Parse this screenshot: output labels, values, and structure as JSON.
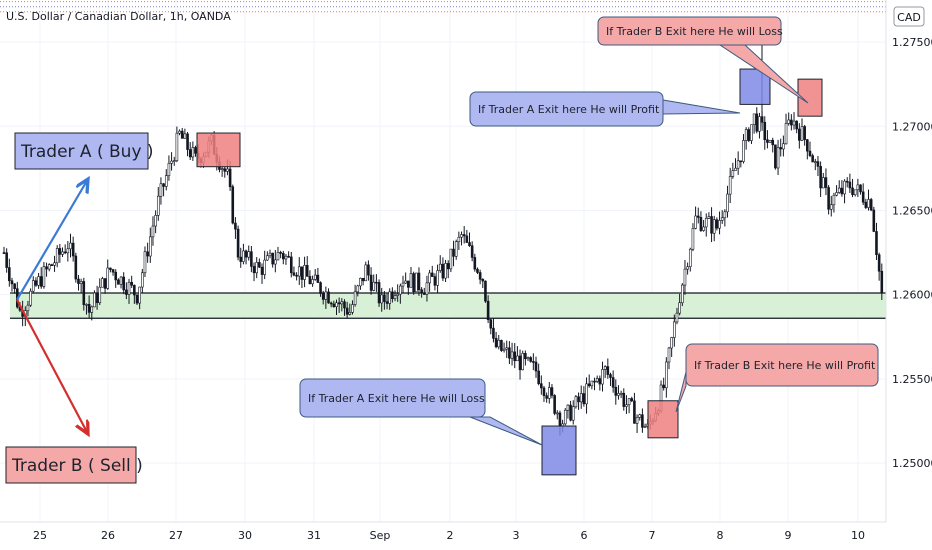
{
  "chart_data": {
    "type": "candlestick",
    "title": "U.S. Dollar / Canadian Dollar, 1h, OANDA",
    "currency_badge": "CAD",
    "ylim": [
      1.2465,
      1.2775
    ],
    "y_ticks": [
      "1.27500",
      "1.27000",
      "1.26500",
      "1.26000",
      "1.25500",
      "1.25000"
    ],
    "x_ticks": [
      "25",
      "26",
      "27",
      "30",
      "31",
      "Sep",
      "2",
      "3",
      "6",
      "7",
      "8",
      "9",
      "10"
    ],
    "grid": true,
    "support_zone": {
      "low": 1.2586,
      "high": 1.2601
    },
    "reference_lines": [
      1.2774,
      1.2771,
      1.2768
    ],
    "price_path": [
      [
        0,
        1.2625
      ],
      [
        6,
        1.259
      ],
      [
        14,
        1.261
      ],
      [
        24,
        1.263
      ],
      [
        32,
        1.259
      ],
      [
        40,
        1.2615
      ],
      [
        50,
        1.26
      ],
      [
        58,
        1.2655
      ],
      [
        66,
        1.2695
      ],
      [
        72,
        1.268
      ],
      [
        78,
        1.269
      ],
      [
        84,
        1.267
      ],
      [
        88,
        1.2625
      ],
      [
        96,
        1.2615
      ],
      [
        104,
        1.2625
      ],
      [
        114,
        1.261
      ],
      [
        122,
        1.26
      ],
      [
        130,
        1.259
      ],
      [
        136,
        1.2615
      ],
      [
        142,
        1.2595
      ],
      [
        150,
        1.261
      ],
      [
        158,
        1.2605
      ],
      [
        166,
        1.2615
      ],
      [
        172,
        1.2635
      ],
      [
        180,
        1.261
      ],
      [
        184,
        1.257
      ],
      [
        192,
        1.2562
      ],
      [
        200,
        1.2555
      ],
      [
        210,
        1.2525
      ],
      [
        218,
        1.254
      ],
      [
        226,
        1.2555
      ],
      [
        234,
        1.2535
      ],
      [
        242,
        1.252
      ],
      [
        248,
        1.2545
      ],
      [
        254,
        1.26
      ],
      [
        260,
        1.2645
      ],
      [
        268,
        1.264
      ],
      [
        276,
        1.268
      ],
      [
        282,
        1.2705
      ],
      [
        286,
        1.2695
      ],
      [
        290,
        1.268
      ],
      [
        296,
        1.2705
      ],
      [
        302,
        1.269
      ],
      [
        310,
        1.2655
      ],
      [
        318,
        1.2665
      ],
      [
        326,
        1.2655
      ],
      [
        330,
        1.26
      ]
    ],
    "annotations": [
      {
        "kind": "trader-label",
        "text": "Trader A ( Buy )",
        "color": "#b0b8f2"
      },
      {
        "kind": "trader-label",
        "text": "Trader B ( Sell )",
        "color": "#f4a8a8"
      },
      {
        "kind": "callout",
        "text": "If Trader B Exit here He will Loss",
        "color": "#f4a8a8"
      },
      {
        "kind": "callout",
        "text": "If Trader A Exit here He will Profit",
        "color": "#b0b8f2"
      },
      {
        "kind": "callout",
        "text": "If Trader A Exit here He will Loss",
        "color": "#b0b8f2"
      },
      {
        "kind": "callout",
        "text": "If Trader B Exit here He will Profit",
        "color": "#f4a8a8"
      }
    ],
    "exit_boxes": [
      {
        "trader": "A",
        "outcome": "profit",
        "top": 1.2734,
        "bottom": 1.2713,
        "color": "#7f88e6"
      },
      {
        "trader": "A",
        "outcome": "loss",
        "top": 1.2522,
        "bottom": 1.2493,
        "color": "#7f88e6"
      },
      {
        "trader": "B",
        "outcome": "loss",
        "top": 1.2728,
        "bottom": 1.2706,
        "color": "#f08080"
      },
      {
        "trader": "B",
        "outcome": "profit",
        "top": 1.2537,
        "bottom": 1.2515,
        "color": "#f08080"
      },
      {
        "trader": "B",
        "outcome": "entry",
        "top": 1.2696,
        "bottom": 1.2676,
        "color": "#f08080"
      }
    ],
    "colors": {
      "candles": "#131722",
      "buy_arrow": "#3a7bd5",
      "sell_arrow": "#d32f2f",
      "zone": "#d8f0d5"
    }
  }
}
